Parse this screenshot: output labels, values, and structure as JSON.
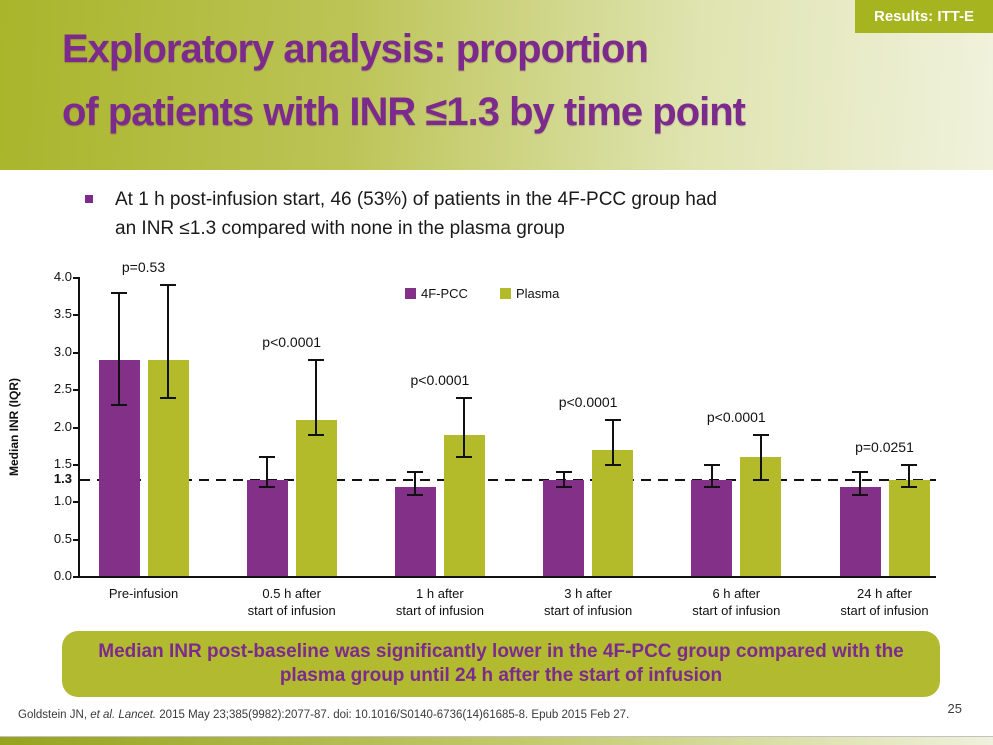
{
  "slide": {
    "badge": "Results: ITT-E",
    "title_lines": [
      "Exploratory analysis: proportion",
      "of patients with INR ≤1.3 by time point"
    ],
    "bullet_lines": [
      "At 1 h post-infusion start, 46 (53%) of patients in the 4F-PCC group had",
      "an INR ≤1.3 compared with none in the plasma group"
    ],
    "conclusion_lines": [
      "Median INR post-baseline was significantly lower in the 4F-PCC group compared with the",
      "plasma group until 24 h after the start of infusion"
    ],
    "footer": {
      "citation_normal1": "Goldstein JN, ",
      "citation_italic": "et al. Lancet.",
      "citation_normal2": " 2015 May 23;385(9982):2077-87. doi: 10.1016/S0140-6736(14)61685-8. Epub 2015 Feb 27.",
      "page_number": "25"
    }
  },
  "chart_data": {
    "type": "bar",
    "title": "",
    "xlabel": "",
    "ylabel": "Median INR (IQR)",
    "ylim": [
      0,
      4.0
    ],
    "yticks": [
      0.0,
      0.5,
      1.0,
      1.3,
      1.5,
      2.0,
      2.5,
      3.0,
      3.5,
      4.0
    ],
    "bold_ytick": 1.3,
    "reference_line": 1.3,
    "grid": false,
    "legend_position": "top-center",
    "categories": [
      [
        "Pre-infusion"
      ],
      [
        "0.5 h after",
        "start of infusion"
      ],
      [
        "1 h after",
        "start of infusion"
      ],
      [
        "3 h after",
        "start of infusion"
      ],
      [
        "6 h after",
        "start of infusion"
      ],
      [
        "24 h after",
        "start of infusion"
      ]
    ],
    "p_values": [
      "p=0.53",
      "p<0.0001",
      "p<0.0001",
      "p<0.0001",
      "p<0.0001",
      "p=0.0251"
    ],
    "series": [
      {
        "name": "4F-PCC",
        "color": "#833089",
        "values": [
          2.9,
          1.3,
          1.2,
          1.3,
          1.3,
          1.2
        ],
        "iqr_low": [
          2.3,
          1.2,
          1.1,
          1.2,
          1.2,
          1.1
        ],
        "iqr_high": [
          3.8,
          1.6,
          1.4,
          1.4,
          1.5,
          1.4
        ]
      },
      {
        "name": "Plasma",
        "color": "#b4bb2b",
        "values": [
          2.9,
          2.1,
          1.9,
          1.7,
          1.6,
          1.3
        ],
        "iqr_low": [
          2.4,
          1.9,
          1.6,
          1.5,
          1.3,
          1.2
        ],
        "iqr_high": [
          3.9,
          2.9,
          2.4,
          2.1,
          1.9,
          1.5
        ]
      }
    ]
  },
  "colors": {
    "title_purple": "#7c2b8d",
    "badge_bg": "#a6b41f",
    "bar_purple": "#833089",
    "bar_olive": "#b4bb2b",
    "conclusion_bg": "#b2ba2f",
    "header_gradient_start": "#a9b52b",
    "header_gradient_end": "#f0f2dc"
  }
}
